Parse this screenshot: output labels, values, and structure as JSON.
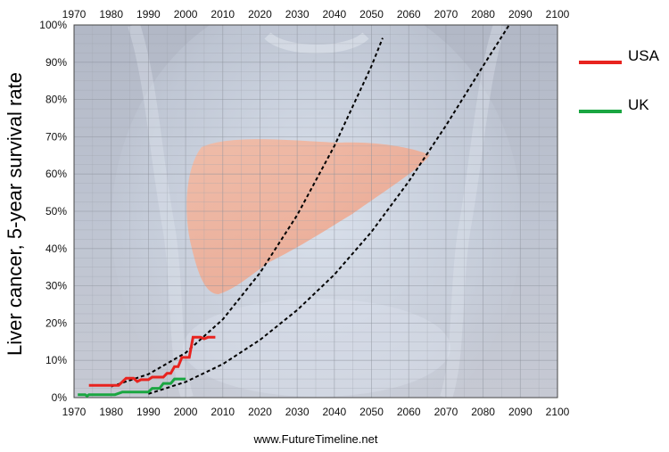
{
  "chart_data": {
    "type": "line",
    "title": "",
    "ylabel": "Liver cancer, 5-year survival rate",
    "xlabel": "",
    "xlim": [
      1970,
      2100
    ],
    "ylim": [
      0,
      100
    ],
    "x_ticks": [
      "1970",
      "1980",
      "1990",
      "2000",
      "2010",
      "2020",
      "2030",
      "2040",
      "2050",
      "2060",
      "2070",
      "2080",
      "2090",
      "2100"
    ],
    "y_ticks": [
      "0%",
      "10%",
      "20%",
      "30%",
      "40%",
      "50%",
      "60%",
      "70%",
      "80%",
      "90%",
      "100%"
    ],
    "grid": true,
    "legend_position": "right",
    "series": [
      {
        "name": "USA",
        "color": "#e8231f",
        "points": [
          [
            1974,
            3.3
          ],
          [
            1982,
            3.3
          ],
          [
            1984,
            5.2
          ],
          [
            1986,
            5.2
          ],
          [
            1987,
            4.3
          ],
          [
            1988,
            4.8
          ],
          [
            1990,
            4.8
          ],
          [
            1991,
            5.5
          ],
          [
            1994,
            5.5
          ],
          [
            1995,
            6.5
          ],
          [
            1996,
            6.5
          ],
          [
            1997,
            8.3
          ],
          [
            1998,
            8.3
          ],
          [
            1999,
            10.8
          ],
          [
            2001,
            10.8
          ],
          [
            2002,
            16.2
          ],
          [
            2004,
            16.2
          ],
          [
            2005,
            15.8
          ],
          [
            2006,
            16.2
          ],
          [
            2008,
            16.2
          ]
        ]
      },
      {
        "name": "UK",
        "color": "#1aa641",
        "points": [
          [
            1971,
            0.8
          ],
          [
            1973,
            0.8
          ],
          [
            1973.5,
            0.4
          ],
          [
            1974,
            0.8
          ],
          [
            1981,
            0.8
          ],
          [
            1983,
            1.5
          ],
          [
            1990,
            1.5
          ],
          [
            1991,
            2.5
          ],
          [
            1993,
            2.5
          ],
          [
            1994,
            3.8
          ],
          [
            1996,
            3.8
          ],
          [
            1997,
            5.0
          ],
          [
            2000,
            5.0
          ]
        ]
      }
    ],
    "trend_lines": [
      {
        "style": "dashed",
        "points": [
          [
            1980,
            3.0
          ],
          [
            1990,
            6.3
          ],
          [
            2000,
            12.0
          ],
          [
            2010,
            21.0
          ],
          [
            2020,
            33.5
          ],
          [
            2030,
            49.0
          ],
          [
            2040,
            67.5
          ],
          [
            2050,
            89.0
          ],
          [
            2053,
            96.5
          ]
        ]
      },
      {
        "style": "dashed",
        "points": [
          [
            1990,
            1.0
          ],
          [
            2000,
            4.2
          ],
          [
            2010,
            9.0
          ],
          [
            2020,
            15.5
          ],
          [
            2030,
            23.5
          ],
          [
            2040,
            33.0
          ],
          [
            2050,
            44.5
          ],
          [
            2060,
            58.0
          ],
          [
            2070,
            73.0
          ],
          [
            2080,
            89.0
          ],
          [
            2087,
            100
          ]
        ]
      }
    ]
  },
  "footer": {
    "source": "www.FutureTimeline.net"
  }
}
